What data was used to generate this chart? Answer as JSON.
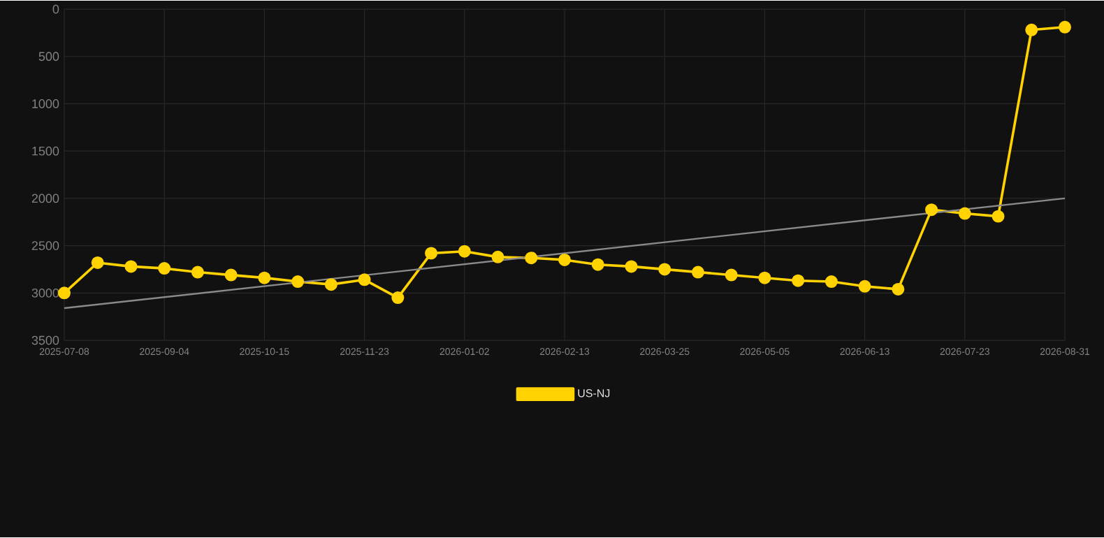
{
  "chart_data": {
    "type": "line",
    "categories": [
      "2025-07-08",
      null,
      null,
      "2025-09-04",
      null,
      null,
      "2025-10-15",
      null,
      null,
      "2025-11-23",
      null,
      null,
      "2026-01-02",
      null,
      null,
      "2026-02-13",
      null,
      null,
      "2026-03-25",
      null,
      null,
      "2026-05-05",
      null,
      null,
      "2026-06-13",
      null,
      null,
      "2026-07-23",
      null,
      null,
      "2026-08-31"
    ],
    "series": [
      {
        "name": "US-NJ",
        "color": "#ffd200",
        "marker": "circle",
        "values": [
          3000,
          2680,
          2720,
          2740,
          2780,
          2810,
          2840,
          2880,
          2910,
          2860,
          3050,
          2580,
          2560,
          2620,
          2630,
          2650,
          2700,
          2720,
          2750,
          2780,
          2810,
          2840,
          2870,
          2880,
          2930,
          2960,
          2120,
          2160,
          2190,
          220,
          190
        ]
      },
      {
        "color": "#8a8a8a",
        "marker": "none",
        "values": [
          3160,
          null,
          null,
          null,
          null,
          null,
          null,
          null,
          null,
          null,
          null,
          null,
          null,
          null,
          null,
          null,
          null,
          null,
          null,
          null,
          null,
          null,
          null,
          null,
          null,
          null,
          null,
          null,
          null,
          null,
          2000
        ]
      }
    ],
    "ylim": [
      3500,
      0
    ],
    "yticks": [
      0,
      500,
      1000,
      1500,
      2000,
      2500,
      3000,
      3500
    ],
    "grid": true,
    "legend": "bottom"
  }
}
